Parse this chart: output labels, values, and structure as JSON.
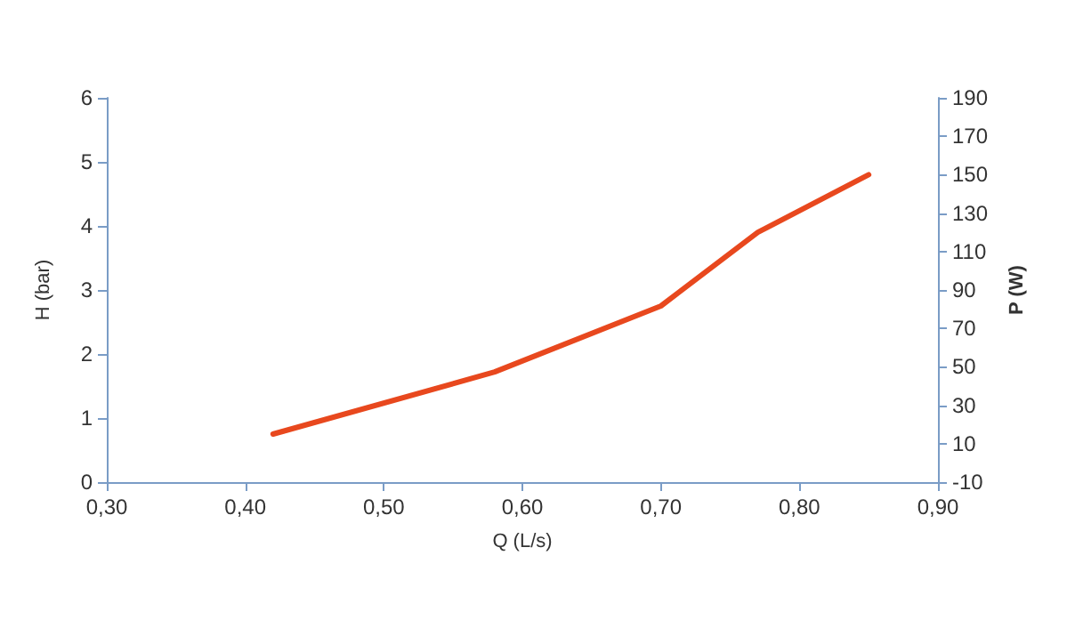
{
  "chart_data": {
    "type": "line",
    "xlabel": "Q (L/s)",
    "ylabel": "H (bar)",
    "y2label": "P (W)",
    "x": [
      0.42,
      0.58,
      0.7,
      0.77,
      0.85
    ],
    "series": [
      {
        "color": "#e8481e",
        "values": [
          0.75,
          1.72,
          2.75,
          3.9,
          4.8
        ]
      }
    ],
    "xlim": [
      0.3,
      0.9
    ],
    "xticks": [
      {
        "value": 0.3,
        "label": "0,30"
      },
      {
        "value": 0.4,
        "label": "0,40"
      },
      {
        "value": 0.5,
        "label": "0,50"
      },
      {
        "value": 0.6,
        "label": "0,60"
      },
      {
        "value": 0.7,
        "label": "0,70"
      },
      {
        "value": 0.8,
        "label": "0,80"
      },
      {
        "value": 0.9,
        "label": "0,90"
      }
    ],
    "ylim": [
      0,
      6
    ],
    "yticks": [
      0,
      1,
      2,
      3,
      4,
      5,
      6
    ],
    "y2lim": [
      -10,
      190
    ],
    "y2ticks": [
      -10,
      10,
      30,
      50,
      70,
      90,
      110,
      130,
      150,
      170,
      190
    ],
    "grid": false,
    "marker": "none",
    "line_style": "solid"
  }
}
